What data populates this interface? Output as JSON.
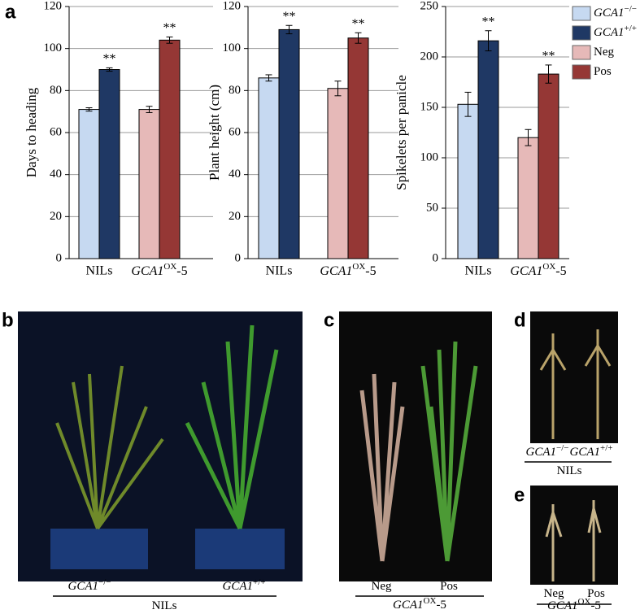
{
  "panel_labels": [
    "a",
    "b",
    "c",
    "d",
    "e"
  ],
  "chart_data": [
    {
      "type": "bar",
      "ylabel": "Days to heading",
      "categories": [
        "NILs",
        [
          "GCA1",
          "OX",
          "-5"
        ]
      ],
      "ylim": [
        0,
        120
      ],
      "yticks": [
        0,
        20,
        40,
        60,
        80,
        100,
        120
      ],
      "grid": true,
      "series": [
        {
          "name": [
            "GCA1",
            "−/−"
          ],
          "color": "#c6d9f1",
          "values": [
            71,
            null
          ],
          "errors": [
            0.8,
            null
          ]
        },
        {
          "name": [
            "GCA1",
            "+/+"
          ],
          "color": "#1f3864",
          "values": [
            90,
            null
          ],
          "errors": [
            0.8,
            null
          ],
          "annotations": [
            "**",
            null
          ]
        },
        {
          "name": [
            "Neg"
          ],
          "color": "#e6b9b8",
          "values": [
            null,
            71
          ],
          "errors": [
            null,
            1.5
          ]
        },
        {
          "name": [
            "Pos"
          ],
          "color": "#953735",
          "values": [
            null,
            104
          ],
          "errors": [
            null,
            1.5
          ],
          "annotations": [
            null,
            "**"
          ]
        }
      ]
    },
    {
      "type": "bar",
      "ylabel": "Plant height (cm)",
      "categories": [
        "NILs",
        [
          "GCA1",
          "OX",
          "-5"
        ]
      ],
      "ylim": [
        0,
        120
      ],
      "yticks": [
        0,
        20,
        40,
        60,
        80,
        100,
        120
      ],
      "grid": true,
      "series": [
        {
          "name": [
            "GCA1",
            "−/−"
          ],
          "color": "#c6d9f1",
          "values": [
            86,
            null
          ],
          "errors": [
            1.5,
            null
          ]
        },
        {
          "name": [
            "GCA1",
            "+/+"
          ],
          "color": "#1f3864",
          "values": [
            109,
            null
          ],
          "errors": [
            2,
            null
          ],
          "annotations": [
            "**",
            null
          ]
        },
        {
          "name": [
            "Neg"
          ],
          "color": "#e6b9b8",
          "values": [
            null,
            81
          ],
          "errors": [
            null,
            3.5
          ]
        },
        {
          "name": [
            "Pos"
          ],
          "color": "#953735",
          "values": [
            null,
            105
          ],
          "errors": [
            null,
            2.5
          ],
          "annotations": [
            null,
            "**"
          ]
        }
      ]
    },
    {
      "type": "bar",
      "ylabel": "Spikelets per panicle",
      "categories": [
        "NILs",
        [
          "GCA1",
          "OX",
          "-5"
        ]
      ],
      "ylim": [
        0,
        250
      ],
      "yticks": [
        0,
        50,
        100,
        150,
        200,
        250
      ],
      "grid": true,
      "series": [
        {
          "name": [
            "GCA1",
            "−/−"
          ],
          "color": "#c6d9f1",
          "values": [
            153,
            null
          ],
          "errors": [
            12,
            null
          ]
        },
        {
          "name": [
            "GCA1",
            "+/+"
          ],
          "color": "#1f3864",
          "values": [
            216,
            null
          ],
          "errors": [
            10,
            null
          ],
          "annotations": [
            "**",
            null
          ]
        },
        {
          "name": [
            "Neg"
          ],
          "color": "#e6b9b8",
          "values": [
            null,
            120
          ],
          "errors": [
            null,
            8
          ]
        },
        {
          "name": [
            "Pos"
          ],
          "color": "#953735",
          "values": [
            null,
            183
          ],
          "errors": [
            null,
            9
          ],
          "annotations": [
            null,
            "**"
          ]
        }
      ]
    }
  ],
  "photos": {
    "b": {
      "labels": [
        [
          "GCA1",
          "−/−"
        ],
        [
          "GCA1",
          "+/+"
        ]
      ],
      "group": [
        "NILs"
      ]
    },
    "c": {
      "labels": [
        [
          "Neg"
        ],
        [
          "Pos"
        ]
      ],
      "group": [
        "GCA1",
        "OX",
        "-5"
      ]
    },
    "d": {
      "labels": [
        [
          "GCA1",
          "−/−"
        ],
        [
          "GCA1",
          "+/+"
        ]
      ],
      "group": [
        "NILs"
      ]
    },
    "e": {
      "labels": [
        [
          "Neg"
        ],
        [
          "Pos"
        ]
      ],
      "group": [
        "GCA1",
        "OX",
        "-5"
      ]
    }
  }
}
